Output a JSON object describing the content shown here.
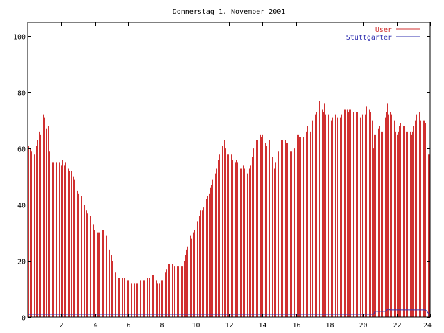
{
  "chart_data": {
    "type": "bar",
    "title": "Donnerstag 1. November 2001",
    "xlabel": "",
    "ylabel": "",
    "xlim": [
      0,
      24
    ],
    "ylim": [
      0,
      105
    ],
    "x_ticks": [
      2,
      4,
      6,
      8,
      10,
      12,
      14,
      16,
      18,
      20,
      22,
      24
    ],
    "y_ticks": [
      0,
      20,
      40,
      60,
      80,
      100
    ],
    "grid": false,
    "legend_position": "top-right",
    "bar_interval_hours": 0.0833,
    "series": [
      {
        "name": "User",
        "style": "impulses",
        "color": "#d03030",
        "values": [
          61,
          60,
          59,
          57,
          58,
          62,
          61,
          63,
          66,
          65,
          71,
          72,
          71,
          67,
          67,
          68,
          59,
          56,
          55,
          55,
          55,
          55,
          55,
          55,
          55,
          54,
          56,
          54,
          55,
          54,
          53,
          52,
          51,
          52,
          50,
          49,
          47,
          45,
          44,
          43,
          43,
          42,
          40,
          39,
          38,
          37,
          37,
          36,
          35,
          33,
          31,
          30,
          30,
          30,
          30,
          30,
          31,
          31,
          30,
          29,
          26,
          24,
          22,
          22,
          20,
          19,
          16,
          15,
          14,
          14,
          14,
          14,
          13,
          14,
          14,
          13,
          13,
          13,
          12,
          12,
          12,
          12,
          12,
          12,
          13,
          13,
          13,
          13,
          13,
          13,
          14,
          14,
          14,
          14,
          15,
          15,
          14,
          13,
          12,
          12,
          12,
          13,
          13,
          14,
          16,
          17,
          19,
          19,
          19,
          19,
          17,
          18,
          18,
          18,
          18,
          18,
          18,
          18,
          20,
          22,
          24,
          25,
          27,
          29,
          28,
          30,
          31,
          32,
          34,
          35,
          36,
          38,
          38,
          39,
          41,
          42,
          43,
          44,
          46,
          47,
          49,
          49,
          51,
          53,
          56,
          58,
          60,
          61,
          62,
          63,
          60,
          58,
          58,
          59,
          58,
          56,
          55,
          55,
          56,
          55,
          54,
          53,
          53,
          54,
          53,
          52,
          51,
          50,
          53,
          54,
          57,
          60,
          61,
          63,
          63,
          64,
          65,
          64,
          65,
          66,
          62,
          61,
          62,
          63,
          62,
          57,
          55,
          53,
          55,
          57,
          59,
          62,
          63,
          63,
          63,
          63,
          62,
          62,
          60,
          59,
          59,
          59,
          60,
          63,
          65,
          65,
          64,
          64,
          63,
          64,
          65,
          66,
          68,
          67,
          66,
          68,
          70,
          70,
          72,
          73,
          75,
          77,
          76,
          74,
          73,
          76,
          72,
          71,
          72,
          71,
          70,
          71,
          71,
          72,
          72,
          71,
          70,
          71,
          72,
          73,
          74,
          74,
          74,
          73,
          74,
          74,
          74,
          73,
          72,
          73,
          73,
          72,
          71,
          72,
          72,
          71,
          72,
          75,
          73,
          74,
          73,
          70,
          60,
          65,
          65,
          66,
          67,
          68,
          66,
          66,
          72,
          71,
          73,
          76,
          72,
          73,
          72,
          71,
          70,
          66,
          65,
          66,
          68,
          69,
          68,
          68,
          68,
          66,
          66,
          67,
          66,
          65,
          66,
          68,
          70,
          72,
          71,
          73,
          70,
          71,
          70,
          70,
          69,
          62,
          58,
          58
        ]
      },
      {
        "name": "Stuttgarter",
        "style": "line",
        "color": "#3030b0",
        "values": [
          1.0,
          1.0,
          1.0,
          1.0,
          1.0,
          1.0,
          1.0,
          1.0,
          1.0,
          1.0,
          1.0,
          1.0,
          1.0,
          1.0,
          1.0,
          1.0,
          1.0,
          1.0,
          1.0,
          1.0,
          1.0,
          1.0,
          1.0,
          1.0,
          1.0,
          1.0,
          1.0,
          1.0,
          1.0,
          1.0,
          1.0,
          1.0,
          1.0,
          1.0,
          1.0,
          1.0,
          1.0,
          1.0,
          1.0,
          1.0,
          1.0,
          1.0,
          1.0,
          1.0,
          1.0,
          1.0,
          1.0,
          1.0,
          1.0,
          1.0,
          1.0,
          1.0,
          1.0,
          1.0,
          1.0,
          1.0,
          1.0,
          1.0,
          1.0,
          1.0,
          1.0,
          1.0,
          1.0,
          1.0,
          1.0,
          1.0,
          1.0,
          1.0,
          1.0,
          1.0,
          1.0,
          1.0,
          1.0,
          1.0,
          1.0,
          1.0,
          1.0,
          1.0,
          1.0,
          1.0,
          1.0,
          1.0,
          1.0,
          1.0,
          1.0,
          1.0,
          1.0,
          1.0,
          1.0,
          1.0,
          1.0,
          1.0,
          1.0,
          1.0,
          1.0,
          1.0,
          1.0,
          1.0,
          1.0,
          1.0,
          1.0,
          1.0,
          1.0,
          1.0,
          1.0,
          1.0,
          1.0,
          1.0,
          1.0,
          1.0,
          1.0,
          1.0,
          1.0,
          1.0,
          1.0,
          1.0,
          1.0,
          1.0,
          1.0,
          1.0,
          1.0,
          1.0,
          1.0,
          1.0,
          1.0,
          1.0,
          1.0,
          1.0,
          1.0,
          1.0,
          1.0,
          1.0,
          1.0,
          1.0,
          1.0,
          1.0,
          1.0,
          1.0,
          1.0,
          1.0,
          1.0,
          1.0,
          1.0,
          1.0,
          1.0,
          1.0,
          1.0,
          1.0,
          1.0,
          1.0,
          1.0,
          1.0,
          1.0,
          1.0,
          1.0,
          1.0,
          1.0,
          1.0,
          1.0,
          1.0,
          1.0,
          1.0,
          1.0,
          1.0,
          1.0,
          1.0,
          1.0,
          1.0,
          1.0,
          1.0,
          1.0,
          1.0,
          1.0,
          1.0,
          1.0,
          1.0,
          1.0,
          1.0,
          1.0,
          1.0,
          1.0,
          1.0,
          1.0,
          1.0,
          1.0,
          1.0,
          1.0,
          1.0,
          1.0,
          1.0,
          1.0,
          1.0,
          1.0,
          1.0,
          1.0,
          1.0,
          1.0,
          1.0,
          1.0,
          1.0,
          1.0,
          1.0,
          1.0,
          1.0,
          1.0,
          1.0,
          1.0,
          1.0,
          1.0,
          1.0,
          1.0,
          1.0,
          1.0,
          1.0,
          1.0,
          1.0,
          1.0,
          1.0,
          1.0,
          1.0,
          1.0,
          1.0,
          1.0,
          1.0,
          1.0,
          1.0,
          1.0,
          1.0,
          1.0,
          1.0,
          1.0,
          1.0,
          1.0,
          1.0,
          1.0,
          1.0,
          1.0,
          1.0,
          1.0,
          1.0,
          1.0,
          1.0,
          1.0,
          1.0,
          1.0,
          1.0,
          1.0,
          1.0,
          1.0,
          1.0,
          1.0,
          1.0,
          1.0,
          1.0,
          1.0,
          1.0,
          1.0,
          1.0,
          1.0,
          1.0,
          1.0,
          2.0,
          2.0,
          2.0,
          2.0,
          2.0,
          2.0,
          2.0,
          2.0,
          2.0,
          2.5,
          3.0,
          2.5,
          2.5,
          2.5,
          2.5,
          2.5,
          2.5,
          2.5,
          2.5,
          2.5,
          2.5,
          2.5,
          2.5,
          2.5,
          2.5,
          2.5,
          2.5,
          2.5,
          2.5,
          2.5,
          2.5,
          2.5,
          2.5,
          2.5,
          2.5,
          2.5,
          2.5,
          2.5,
          2.5,
          2.0,
          1.5,
          0.5
        ]
      }
    ]
  }
}
